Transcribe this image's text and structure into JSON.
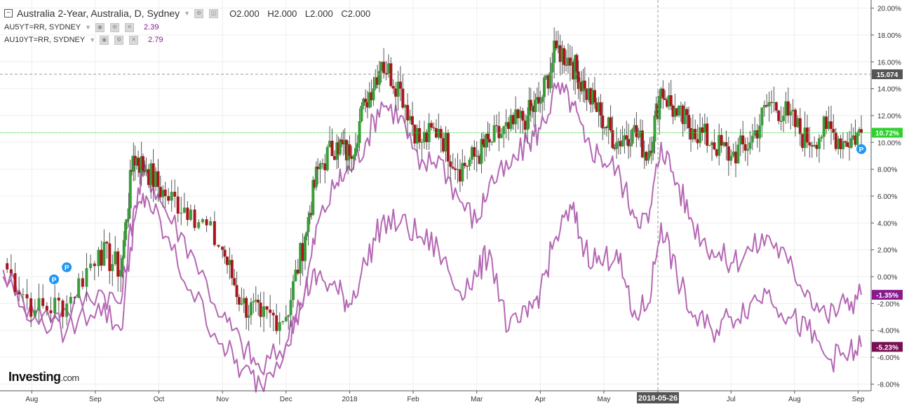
{
  "legend": {
    "main": "Australia 2-Year, Australia, D, Sydney",
    "ohlc": {
      "o": "O2.000",
      "h": "H2.000",
      "l": "L2.000",
      "c": "C2.000"
    },
    "studies": [
      {
        "name": "AU5YT=RR, SYDNEY",
        "value": "2.39"
      },
      {
        "name": "AU10YT=RR, SYDNEY",
        "value": "2.79"
      }
    ]
  },
  "logo": {
    "text": "Investing",
    "suffix": ".com"
  },
  "colors": {
    "up": "#3a9d3a",
    "down": "#a8161b",
    "study_line": "#b468b4",
    "crosshair_price_bg": "#555555",
    "green_label_bg": "#2fd12f",
    "purple_label_bg": "#8a1b8f",
    "dark_purple_label_bg": "#7a0e52",
    "grid": "#eeeeee"
  },
  "chart_data": {
    "type": "line",
    "y_axis": {
      "ticks": [
        "20.00%",
        "18.00%",
        "16.00%",
        "14.00%",
        "12.00%",
        "10.00%",
        "8.00%",
        "6.00%",
        "4.00%",
        "2.00%",
        "0.00%",
        "-2.00%",
        "-4.00%",
        "-6.00%",
        "-8.00%"
      ],
      "ylim": [
        -8.5,
        20.5
      ],
      "scale": "percent change"
    },
    "x_axis": {
      "labels": [
        "Aug",
        "Sep",
        "Oct",
        "Nov",
        "Dec",
        "2018",
        "Feb",
        "Mar",
        "Apr",
        "May",
        "2018-05-26",
        "Jul",
        "Aug",
        "Sep"
      ],
      "label_positions": [
        0.5,
        1.5,
        2.5,
        3.5,
        4.5,
        5.5,
        6.5,
        7.5,
        8.5,
        9.5,
        10.35,
        11.5,
        12.5,
        13.5
      ],
      "xlim": [
        0,
        13.55
      ],
      "crosshair_date": "2018-05-26"
    },
    "current_labels": {
      "crosshair_price": {
        "text": "15.074",
        "value": 15.074
      },
      "main_last": {
        "text": "10.72%",
        "value": 10.72
      },
      "au5_last": {
        "text": "-1.35%",
        "value": -1.35
      },
      "au10_last": {
        "text": "-5.23%",
        "value": -5.23
      }
    },
    "markers": [
      {
        "label": "P",
        "x": 0.85,
        "y": -0.2
      },
      {
        "label": "P",
        "x": 1.05,
        "y": 0.7
      },
      {
        "label": "P",
        "x": 13.55,
        "y": 9.5
      }
    ],
    "series": [
      {
        "name": "Australia 2-Year",
        "kind": "candles",
        "x": [
          0.05,
          0.55,
          1.05,
          1.55,
          1.9,
          2.1,
          2.3,
          2.6,
          3.0,
          3.5,
          3.8,
          4.1,
          4.5,
          4.8,
          5.0,
          5.3,
          5.5,
          5.75,
          6.0,
          6.3,
          6.6,
          6.9,
          7.2,
          7.5,
          7.7,
          8.0,
          8.3,
          8.5,
          8.75,
          9.0,
          9.2,
          9.45,
          9.7,
          9.95,
          10.2,
          10.4,
          10.65,
          10.9,
          11.2,
          11.5,
          11.8,
          12.1,
          12.4,
          12.7,
          13.0,
          13.3,
          13.55
        ],
        "values": [
          1,
          -2.5,
          -2,
          2,
          0.5,
          9,
          8,
          6,
          5,
          2,
          -2,
          -3,
          -3,
          3,
          8,
          10,
          9,
          13,
          16,
          14,
          10,
          11,
          8,
          9,
          10,
          11,
          12,
          13,
          17,
          16,
          14,
          12,
          10,
          11,
          9,
          14,
          12,
          11,
          10,
          9,
          10,
          13,
          12,
          10,
          11,
          10,
          10.72
        ]
      },
      {
        "name": "AU5YT=RR, SYDNEY",
        "kind": "line",
        "x": [
          0.05,
          0.55,
          1.05,
          1.55,
          1.9,
          2.1,
          2.3,
          2.6,
          3.0,
          3.5,
          3.8,
          4.1,
          4.5,
          4.8,
          5.0,
          5.3,
          5.5,
          5.75,
          6.0,
          6.3,
          6.6,
          6.9,
          7.2,
          7.5,
          7.7,
          8.0,
          8.3,
          8.5,
          8.75,
          9.0,
          9.2,
          9.45,
          9.7,
          9.95,
          10.2,
          10.4,
          10.65,
          10.9,
          11.2,
          11.5,
          11.8,
          12.1,
          12.4,
          12.7,
          13.0,
          13.3,
          13.55
        ],
        "values": [
          0.5,
          -3,
          -2.5,
          -1,
          -2,
          5,
          8,
          5,
          2,
          -3,
          -5,
          -7,
          -5,
          -1,
          4,
          7,
          8,
          10,
          13,
          12,
          8,
          9,
          6,
          4,
          7,
          8,
          10,
          11,
          14,
          13,
          10,
          9,
          8,
          5,
          4,
          10,
          7,
          4,
          2,
          1,
          2,
          3,
          1,
          -1,
          -3,
          -2,
          -1.35
        ]
      },
      {
        "name": "AU10YT=RR, SYDNEY",
        "kind": "line",
        "x": [
          0.05,
          0.55,
          1.05,
          1.55,
          1.9,
          2.1,
          2.3,
          2.6,
          3.0,
          3.5,
          3.8,
          4.1,
          4.5,
          4.8,
          5.0,
          5.3,
          5.5,
          5.75,
          6.0,
          6.3,
          6.6,
          6.9,
          7.2,
          7.5,
          7.7,
          8.0,
          8.3,
          8.5,
          8.75,
          9.0,
          9.2,
          9.45,
          9.7,
          9.95,
          10.2,
          10.4,
          10.65,
          10.9,
          11.2,
          11.5,
          11.8,
          12.1,
          12.4,
          12.7,
          13.0,
          13.3,
          13.55
        ],
        "values": [
          0,
          -3,
          -4,
          -2,
          -4,
          4,
          6,
          3,
          -1,
          -5,
          -7,
          -8,
          -5,
          -1,
          0,
          -1,
          -2,
          1,
          4,
          4,
          3,
          2,
          -1,
          0,
          2,
          -4,
          -3,
          -1,
          3,
          5,
          2,
          1,
          2,
          -3,
          -2,
          4,
          0,
          -3,
          -4,
          -3,
          -2,
          -1,
          -3,
          -4,
          -6,
          -6,
          -5.23
        ]
      }
    ]
  }
}
